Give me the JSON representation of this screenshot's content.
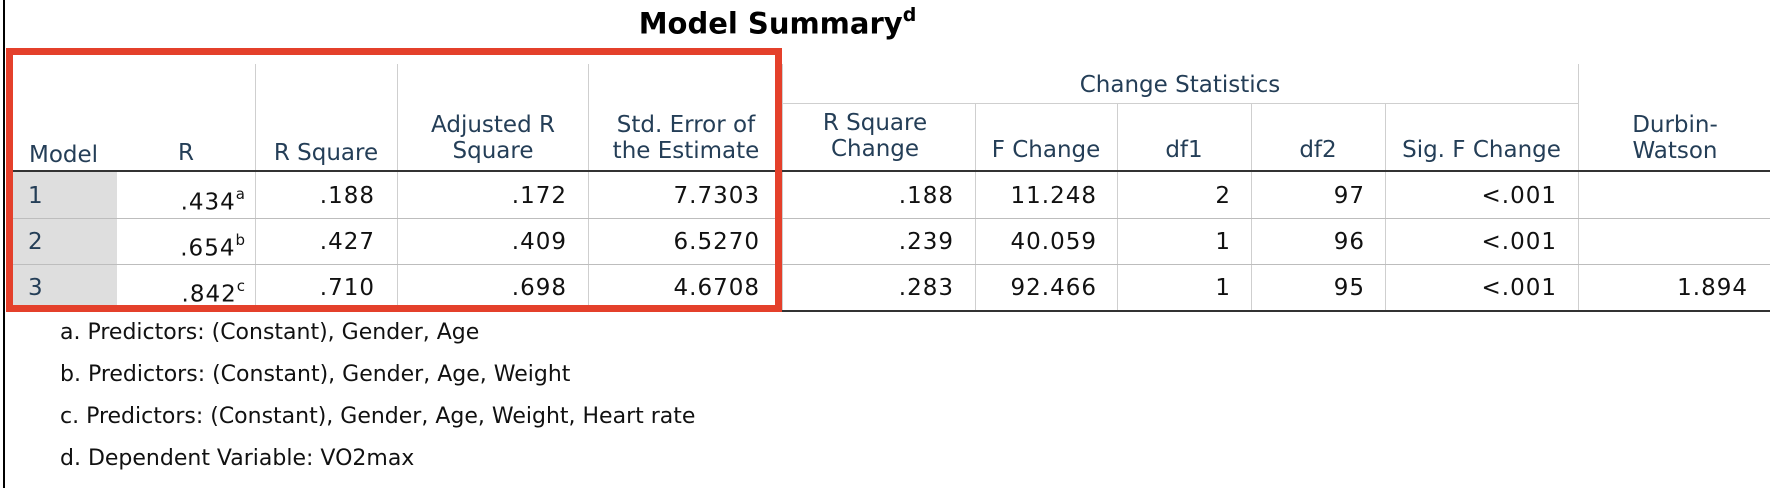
{
  "title": "Model Summary",
  "title_footnote": "d",
  "group_header": "Change Statistics",
  "columns": {
    "model": "Model",
    "r": "R",
    "r_square": "R Square",
    "adj_r_square": "Adjusted R Square",
    "std_error": "Std. Error of the Estimate",
    "r_square_change": "R Square Change",
    "f_change": "F Change",
    "df1": "df1",
    "df2": "df2",
    "sig_f_change": "Sig. F Change",
    "durbin_watson": "Durbin-Watson"
  },
  "rows": [
    {
      "model": "1",
      "r": ".434",
      "r_note": "a",
      "r_square": ".188",
      "adj_r_square": ".172",
      "std_error": "7.7303",
      "r_square_change": ".188",
      "f_change": "11.248",
      "df1": "2",
      "df2": "97",
      "sig_f_change": "<.001",
      "durbin_watson": ""
    },
    {
      "model": "2",
      "r": ".654",
      "r_note": "b",
      "r_square": ".427",
      "adj_r_square": ".409",
      "std_error": "6.5270",
      "r_square_change": ".239",
      "f_change": "40.059",
      "df1": "1",
      "df2": "96",
      "sig_f_change": "<.001",
      "durbin_watson": ""
    },
    {
      "model": "3",
      "r": ".842",
      "r_note": "c",
      "r_square": ".710",
      "adj_r_square": ".698",
      "std_error": "4.6708",
      "r_square_change": ".283",
      "f_change": "92.466",
      "df1": "1",
      "df2": "95",
      "sig_f_change": "<.001",
      "durbin_watson": "1.894"
    }
  ],
  "footnotes": [
    "a. Predictors: (Constant), Gender, Age",
    "b. Predictors: (Constant), Gender, Age, Weight",
    "c. Predictors: (Constant), Gender, Age, Weight, Heart rate",
    "d. Dependent Variable: VO2max"
  ],
  "highlight_color": "#e4402b"
}
